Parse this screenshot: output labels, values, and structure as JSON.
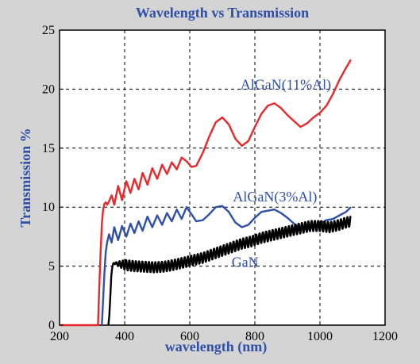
{
  "chart_data": {
    "type": "line",
    "title": "Wavelength vs Transmission",
    "xlabel": "wavelength (nm)",
    "ylabel": "Transmission %",
    "xlim": [
      200,
      1200
    ],
    "ylim": [
      0,
      25
    ],
    "xticks": [
      200,
      400,
      600,
      800,
      1000,
      1200
    ],
    "yticks": [
      0,
      5,
      10,
      15,
      20,
      25
    ],
    "grid": true,
    "legend": "inline labels",
    "colors": {
      "background": "#d4d4d4",
      "plot_area": "#ffffff",
      "title_text": "#2f4fa8",
      "label_text": "#2f4fa8",
      "grid": "#000000"
    },
    "annotations": [
      {
        "text": "AlGaN(11%Al)",
        "x": 895,
        "y": 20.0,
        "color": "#2f4fa8"
      },
      {
        "text": "AlGaN(3%Al)",
        "x": 862,
        "y": 10.5,
        "color": "#2f4fa8"
      },
      {
        "text": "GaN",
        "x": 770,
        "y": 4.95,
        "color": "#2f4fa8"
      }
    ],
    "series": [
      {
        "color": "#e8282b",
        "x": [
          200,
          250,
          300,
          318,
          322,
          326,
          330,
          334,
          338,
          342,
          346,
          352,
          360,
          368,
          380,
          392,
          405,
          418,
          430,
          443,
          455,
          470,
          485,
          500,
          515,
          530,
          545,
          560,
          575,
          590,
          605,
          620,
          640,
          660,
          680,
          700,
          720,
          740,
          760,
          780,
          800,
          820,
          840,
          860,
          880,
          900,
          920,
          940,
          960,
          980,
          1000,
          1020,
          1040,
          1060,
          1080,
          1095
        ],
        "values": [
          0,
          0,
          0,
          0,
          3.2,
          6.2,
          8.6,
          9.8,
          10.3,
          10.4,
          10.2,
          10.5,
          11.0,
          10.2,
          11.8,
          10.6,
          12.2,
          11.2,
          12.4,
          11.5,
          12.9,
          11.9,
          13.3,
          12.4,
          13.6,
          12.8,
          13.8,
          13.2,
          14.2,
          13.9,
          13.4,
          13.5,
          14.6,
          16.0,
          17.2,
          17.6,
          17.0,
          15.8,
          15.2,
          15.6,
          16.8,
          17.9,
          18.6,
          18.8,
          18.4,
          17.8,
          17.3,
          16.8,
          17.1,
          17.6,
          18.0,
          18.6,
          19.6,
          20.8,
          21.8,
          22.5
        ]
      },
      {
        "color": "#2f4fa8",
        "x": [
          330,
          334,
          338,
          342,
          346,
          352,
          360,
          368,
          380,
          392,
          405,
          418,
          430,
          443,
          455,
          470,
          485,
          500,
          515,
          530,
          545,
          560,
          575,
          590,
          605,
          620,
          640,
          660,
          680,
          700,
          720,
          740,
          760,
          780,
          800,
          820,
          840,
          860,
          880,
          900,
          920,
          940,
          960,
          980,
          1000,
          1020,
          1040,
          1060,
          1080,
          1095
        ],
        "values": [
          0,
          2.2,
          4.5,
          6.2,
          7.0,
          7.7,
          7.0,
          8.3,
          7.2,
          8.4,
          7.5,
          8.6,
          7.8,
          8.8,
          8.0,
          9.2,
          8.3,
          9.3,
          8.5,
          9.5,
          8.8,
          9.8,
          9.0,
          10.0,
          9.4,
          8.8,
          8.9,
          9.4,
          10.0,
          10.1,
          9.6,
          8.7,
          8.3,
          8.5,
          9.1,
          9.6,
          9.7,
          9.8,
          9.5,
          9.1,
          8.6,
          8.2,
          8.1,
          8.3,
          8.6,
          8.9,
          9.0,
          9.3,
          9.6,
          10.0
        ]
      },
      {
        "color": "#000000",
        "x": [
          350,
          353,
          356,
          359,
          362,
          365,
          368,
          372,
          380,
          400,
          430,
          460,
          490,
          520,
          550,
          580,
          610,
          640,
          670,
          700,
          730,
          760,
          790,
          820,
          850,
          880,
          910,
          940,
          970,
          1000,
          1030,
          1060,
          1080,
          1095
        ],
        "values": [
          0,
          0.8,
          2.5,
          4.2,
          4.9,
          5.2,
          5.3,
          5.2,
          5.2,
          5.1,
          5.0,
          4.95,
          4.9,
          4.95,
          5.1,
          5.3,
          5.5,
          5.7,
          6.0,
          6.3,
          6.6,
          6.9,
          7.1,
          7.4,
          7.6,
          7.8,
          8.0,
          8.2,
          8.4,
          8.4,
          8.3,
          8.5,
          8.7,
          8.8
        ],
        "oscillation": {
          "period_nm": 10,
          "amplitude_pct": 0.45
        }
      }
    ]
  }
}
